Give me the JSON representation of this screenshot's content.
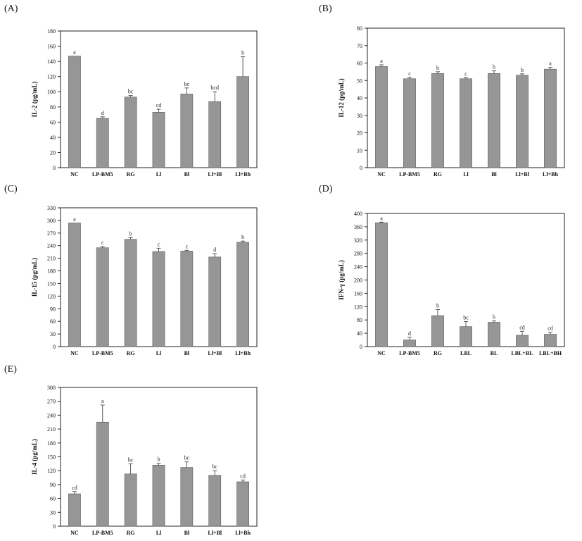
{
  "bar_color": "#969696",
  "bar_stroke": "#5a5a5a",
  "chart_data": [
    {
      "panel_label": "(A)",
      "type": "bar",
      "categories": [
        "NC",
        "LP-BM5",
        "RG",
        "Ll",
        "Bl",
        "Ll+Bl",
        "Ll+Bh"
      ],
      "values": [
        147,
        65,
        93,
        73,
        97,
        87,
        120
      ],
      "errors": [
        0,
        2,
        2,
        4,
        8,
        13,
        26
      ],
      "letters": [
        "a",
        "d",
        "bc",
        "cd",
        "bc",
        "bcd",
        "b"
      ],
      "ylabel": "IL-2 (pg/mL)",
      "ylim": [
        0,
        180
      ],
      "yticks": [
        "0",
        "20",
        "40",
        "60",
        "80",
        "100",
        "120",
        "140",
        "160",
        "180"
      ]
    },
    {
      "panel_label": "(B)",
      "type": "bar",
      "categories": [
        "NC",
        "LP-BM5",
        "RG",
        "Ll",
        "Bl",
        "Ll+Bl",
        "Ll+Bh"
      ],
      "values": [
        58,
        51,
        54,
        51,
        54,
        53,
        56.5
      ],
      "errors": [
        1,
        0.8,
        1,
        0.6,
        1.5,
        0.8,
        1
      ],
      "letters": [
        "a",
        "c",
        "b",
        "c",
        "b",
        "b",
        "a"
      ],
      "ylabel": "IL-12 (pg/mL)",
      "ylim": [
        0,
        80
      ],
      "yticks": [
        "0",
        "10",
        "20",
        "30",
        "40",
        "50",
        "60",
        "70",
        "80"
      ]
    },
    {
      "panel_label": "(C)",
      "type": "bar",
      "categories": [
        "NC",
        "LP-BM5",
        "RG",
        "Ll",
        "Bl",
        "Ll+Bl",
        "Ll+Bh"
      ],
      "values": [
        294,
        235,
        255,
        226,
        227,
        213,
        248
      ],
      "errors": [
        0,
        3,
        4,
        8,
        2,
        8,
        3
      ],
      "letters": [
        "a",
        "c",
        "b",
        "c",
        "c",
        "d",
        "b"
      ],
      "ylabel": "IL-15 (pg/mL)",
      "ylim": [
        0,
        330
      ],
      "yticks": [
        "0",
        "30",
        "60",
        "90",
        "120",
        "150",
        "180",
        "210",
        "240",
        "270",
        "300",
        "330"
      ]
    },
    {
      "panel_label": "(D)",
      "type": "bar",
      "categories": [
        "NC",
        "LP-BM5",
        "RG",
        "LBL",
        "BL",
        "LBL+BL",
        "LBL+BH"
      ],
      "values": [
        372,
        20,
        93,
        60,
        73,
        34,
        37
      ],
      "errors": [
        2,
        8,
        18,
        15,
        4,
        12,
        6
      ],
      "letters": [
        "a",
        "d",
        "b",
        "bc",
        "b",
        "cd",
        "cd"
      ],
      "ylabel": "IFN-γ (pg/mL)",
      "ylim": [
        0,
        400
      ],
      "yticks": [
        "0",
        "40",
        "80",
        "120",
        "160",
        "200",
        "240",
        "280",
        "320",
        "360",
        "400"
      ]
    },
    {
      "panel_label": "(E)",
      "type": "bar",
      "categories": [
        "NC",
        "LP-BM5",
        "RG",
        "Ll",
        "Bl",
        "Ll+Bl",
        "Ll+Bh"
      ],
      "values": [
        70,
        225,
        113,
        132,
        127,
        110,
        96
      ],
      "errors": [
        5,
        37,
        22,
        4,
        12,
        10,
        4
      ],
      "letters": [
        "cd",
        "a",
        "bc",
        "b",
        "bc",
        "bc",
        "cd"
      ],
      "ylabel": "IL-4 (pg/mL)",
      "ylim": [
        0,
        300
      ],
      "yticks": [
        "0",
        "30",
        "60",
        "90",
        "120",
        "150",
        "180",
        "210",
        "240",
        "270",
        "300"
      ]
    }
  ]
}
